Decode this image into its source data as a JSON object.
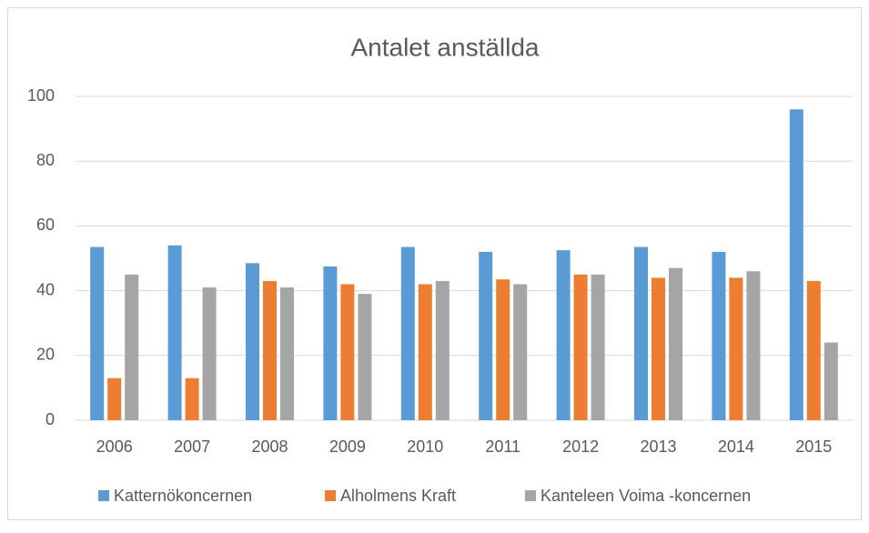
{
  "chart_data": {
    "type": "bar",
    "title": "Antalet anställda",
    "categories": [
      "2006",
      "2007",
      "2008",
      "2009",
      "2010",
      "2011",
      "2012",
      "2013",
      "2014",
      "2015"
    ],
    "series": [
      {
        "name": "Katternökoncernen",
        "color": "#5b9bd5",
        "values": [
          53.5,
          54,
          48.5,
          47.5,
          53.5,
          52,
          52.5,
          53.5,
          52,
          96
        ]
      },
      {
        "name": "Alholmens Kraft",
        "color": "#ed7d31",
        "values": [
          13,
          13,
          43,
          42,
          42,
          43.5,
          45,
          44,
          44,
          43
        ]
      },
      {
        "name": "Kanteleen Voima -koncernen",
        "color": "#a5a5a5",
        "values": [
          45,
          41,
          41,
          39,
          43,
          42,
          45,
          47,
          46,
          24
        ]
      }
    ],
    "ylim": [
      0,
      100
    ],
    "yticks": [
      0,
      20,
      40,
      60,
      80,
      100
    ],
    "grid": true,
    "legend": "bottom"
  }
}
